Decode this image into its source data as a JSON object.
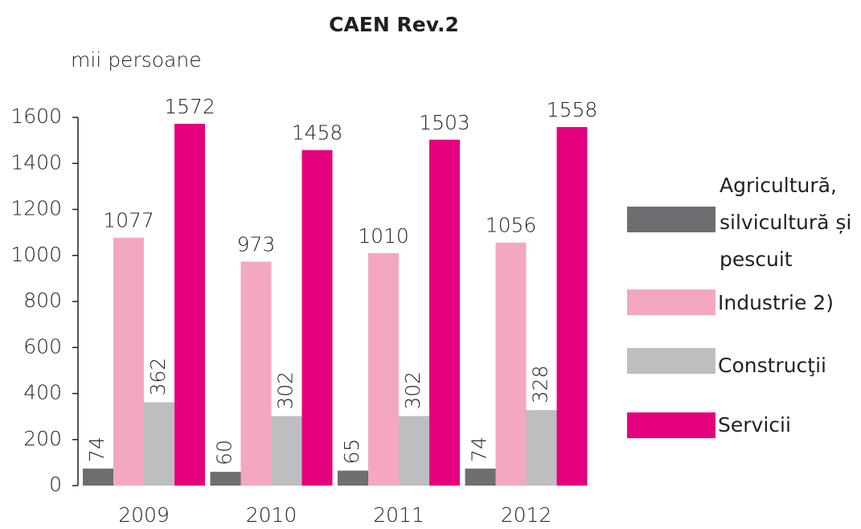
{
  "chart_data": {
    "type": "bar",
    "title": "CAEN Rev.2",
    "y_label": "mii persoane",
    "categories": [
      "2009",
      "2010",
      "2011",
      "2012"
    ],
    "series": [
      {
        "name": "Agricultură, silvicultură și pescuit",
        "color": "#6d6e71",
        "values": [
          74,
          60,
          65,
          74
        ]
      },
      {
        "name": "Industrie 2)",
        "color": "#f4a7c1",
        "values": [
          1077,
          973,
          1010,
          1056
        ]
      },
      {
        "name": "Construcţii",
        "color": "#bdbec0",
        "values": [
          362,
          302,
          302,
          328
        ]
      },
      {
        "name": "Servicii",
        "color": "#e5007d",
        "values": [
          1572,
          1458,
          1503,
          1558
        ]
      }
    ],
    "ylim": [
      0,
      1600
    ],
    "yticks": [
      0,
      200,
      400,
      600,
      800,
      1000,
      1200,
      1400,
      1600
    ],
    "grid": false,
    "legend": "right"
  }
}
